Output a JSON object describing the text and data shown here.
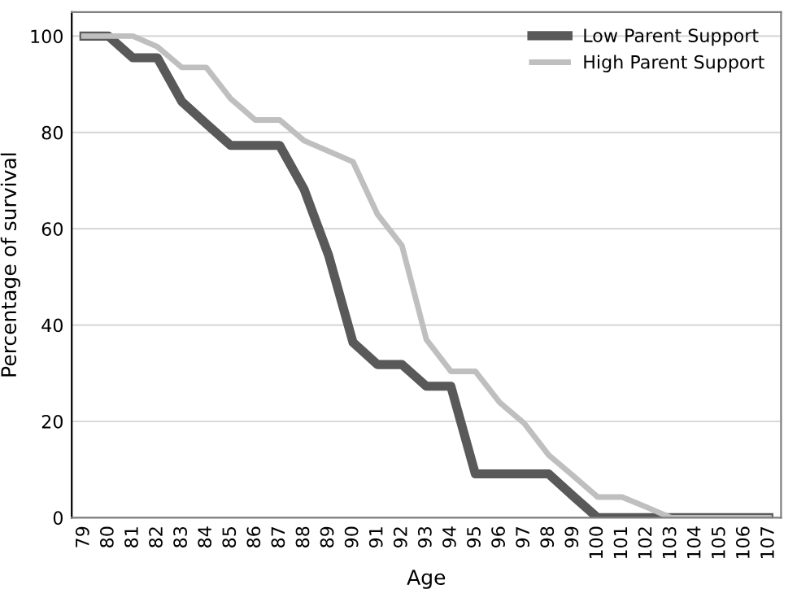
{
  "chart_data": {
    "type": "line",
    "xlabel": "Age",
    "ylabel": "Percentage of survival",
    "categories": [
      "79",
      "80",
      "81",
      "82",
      "83",
      "84",
      "85",
      "86",
      "87",
      "88",
      "89",
      "90",
      "91",
      "92",
      "93",
      "94",
      "95",
      "96",
      "97",
      "98",
      "99",
      "100",
      "101",
      "102",
      "103",
      "104",
      "105",
      "106",
      "107"
    ],
    "series": [
      {
        "name": "Low Parent Support",
        "color": "#595959",
        "values": [
          100,
          100,
          95.5,
          95.5,
          86.4,
          81.8,
          77.3,
          77.3,
          77.3,
          68.2,
          54.5,
          36.4,
          31.8,
          31.8,
          27.3,
          27.3,
          9.1,
          9.1,
          9.1,
          9.1,
          4.5,
          0,
          0,
          0,
          0,
          0,
          0,
          0,
          0
        ]
      },
      {
        "name": "High Parent Support",
        "color": "#bfbfbf",
        "values": [
          100,
          100,
          100,
          97.8,
          93.5,
          93.5,
          87,
          82.6,
          82.6,
          78.3,
          76.1,
          73.9,
          63,
          56.5,
          37,
          30.4,
          30.4,
          23.9,
          19.6,
          13,
          8.7,
          4.3,
          4.3,
          2.2,
          0,
          0,
          0,
          0,
          0
        ]
      }
    ],
    "ylim": [
      0,
      105
    ],
    "yticks": [
      0,
      20,
      40,
      60,
      80,
      100
    ],
    "grid": "y",
    "legend": "top right",
    "marker": "none",
    "line_style": "solid"
  }
}
